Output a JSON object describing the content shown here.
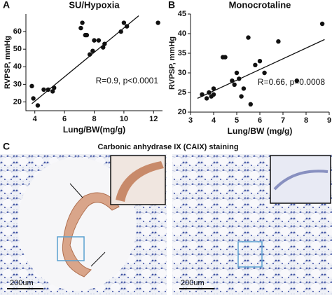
{
  "chart_data": [
    {
      "type": "scatter",
      "title": "SU/Hypoxia",
      "xlabel": "Lung/BW(mg/g)",
      "ylabel": "RVPSP, mmHg",
      "annotation": "R=0.9, p<0.0001",
      "color": "#111111",
      "x": [
        3.8,
        3.9,
        4.2,
        4.6,
        4.9,
        5.2,
        5.3,
        7.1,
        7.2,
        7.4,
        7.5,
        7.7,
        7.9,
        8.0,
        8.3,
        8.6,
        8.7,
        9.8,
        10.0,
        10.2,
        12.3
      ],
      "values": [
        29,
        22,
        18,
        27,
        27,
        26,
        28,
        62,
        65,
        58,
        58,
        47,
        49,
        55,
        55,
        51,
        53,
        60,
        65,
        63,
        65
      ],
      "fit": {
        "x": [
          3.8,
          11.0
        ],
        "y": [
          19,
          69
        ]
      },
      "xlim": [
        3.4,
        12.6
      ],
      "ylim": [
        15,
        70
      ],
      "xticks": [
        4,
        6,
        8,
        10,
        12
      ],
      "yticks": [
        20,
        30,
        40,
        50,
        60
      ]
    },
    {
      "type": "scatter",
      "title": "Monocrotaline",
      "xlabel": "Lung/BW (mg/g)",
      "ylabel": "RVPSP, mmHg",
      "annotation": "R=0.66, p=0.0008",
      "color": "#111111",
      "x": [
        3.5,
        3.7,
        3.8,
        3.9,
        4.0,
        4.0,
        4.4,
        4.5,
        4.8,
        4.9,
        5.0,
        5.1,
        5.2,
        5.3,
        5.5,
        5.6,
        5.8,
        6.0,
        6.2,
        6.8,
        7.6,
        8.7
      ],
      "values": [
        24.5,
        23.5,
        25,
        24,
        26,
        24.5,
        34,
        34,
        28,
        27,
        30,
        28.5,
        24,
        26,
        39,
        22,
        32,
        33,
        30,
        38,
        28,
        42.5
      ],
      "fit": {
        "x": [
          3.3,
          8.8
        ],
        "y": [
          23.5,
          38.5
        ]
      },
      "xlim": [
        3,
        9
      ],
      "ylim": [
        20,
        45
      ],
      "xticks": [
        3,
        4,
        5,
        6,
        7,
        8,
        9
      ],
      "yticks": [
        20,
        25,
        30,
        35,
        40,
        45
      ]
    }
  ],
  "panel_labels": [
    "A",
    "B",
    "C"
  ],
  "staining_title": "Carbonic anhydrase IX (CAIX) staining",
  "scale_bars": [
    "200um",
    "200um"
  ]
}
